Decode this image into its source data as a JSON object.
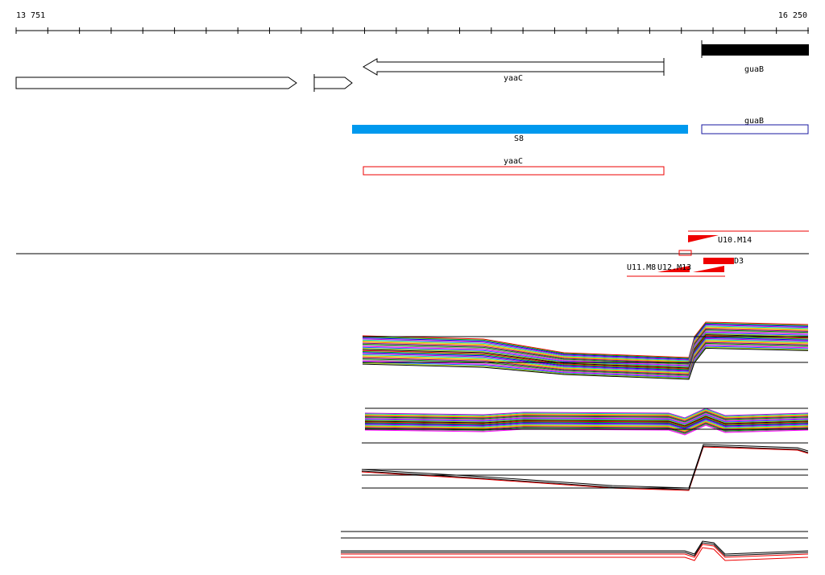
{
  "ruler": {
    "start": "13 751",
    "end": "16 250"
  },
  "features": [
    {
      "label": "yaaC"
    },
    {
      "label": "guaB"
    },
    {
      "label": "guaB"
    },
    {
      "label": "S8"
    },
    {
      "label": "yaaC"
    }
  ],
  "probes": [
    {
      "label": "U10.M14"
    },
    {
      "label": "D3"
    },
    {
      "label": "U11.M8"
    },
    {
      "label": "U12.M13"
    }
  ]
}
